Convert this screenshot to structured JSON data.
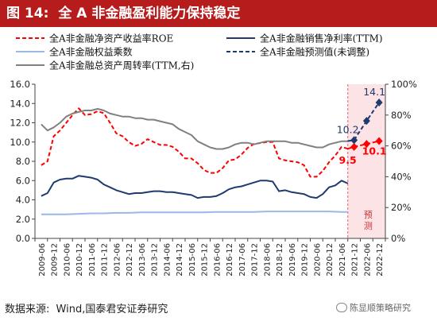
{
  "figure": {
    "number": "图 14:",
    "title": "全 A 非金融盈利能力保持稳定"
  },
  "source": {
    "label": "数据来源:",
    "text": "Wind,国泰君安证券研究"
  },
  "watermark": {
    "text": "陈显顺策略研究"
  },
  "forecast_label": "预测",
  "colors": {
    "title_bg": "#b71c1c",
    "roe": "#ff0000",
    "npm": "#1f3a6e",
    "em": "#9bb8e6",
    "forecast_line": "#1f3a6e",
    "turnover": "#808080",
    "forecast_band": "#fbe3e6"
  },
  "chart_data": {
    "type": "line",
    "categories": [
      "2009-06",
      "2009-12",
      "2010-06",
      "2010-12",
      "2011-06",
      "2011-12",
      "2012-06",
      "2012-12",
      "2013-06",
      "2013-12",
      "2014-06",
      "2014-12",
      "2015-06",
      "2015-12",
      "2016-06",
      "2016-12",
      "2017-06",
      "2017-12",
      "2018-06",
      "2018-12",
      "2019-06",
      "2019-12",
      "2020-06",
      "2020-12",
      "2021-06",
      "2021-12",
      "2022-06",
      "2022-12"
    ],
    "y_left": {
      "min": 0,
      "max": 16,
      "ticks": [
        "0.0",
        "2.0",
        "4.0",
        "6.0",
        "8.0",
        "10.0",
        "12.0",
        "14.0",
        "16.0"
      ]
    },
    "y_right": {
      "min": 0,
      "max": 100,
      "ticks": [
        "0%",
        "20%",
        "40%",
        "60%",
        "80%",
        "100%"
      ]
    },
    "forecast_start": "2021-12",
    "series": [
      {
        "name": "全A非金融净资产收益率ROE",
        "axis": "left",
        "style": "dashed",
        "x": [
          "2009-06",
          "2009-09",
          "2009-12",
          "2010-03",
          "2010-06",
          "2010-09",
          "2010-12",
          "2011-03",
          "2011-06",
          "2011-09",
          "2011-12",
          "2012-03",
          "2012-06",
          "2012-09",
          "2012-12",
          "2013-03",
          "2013-06",
          "2013-09",
          "2013-12",
          "2014-03",
          "2014-06",
          "2014-09",
          "2014-12",
          "2015-03",
          "2015-06",
          "2015-09",
          "2015-12",
          "2016-03",
          "2016-06",
          "2016-09",
          "2016-12",
          "2017-03",
          "2017-06",
          "2017-09",
          "2017-12",
          "2018-03",
          "2018-06",
          "2018-09",
          "2018-12",
          "2019-03",
          "2019-06",
          "2019-09",
          "2019-12",
          "2020-03",
          "2020-06",
          "2020-09",
          "2020-12",
          "2021-03",
          "2021-06",
          "2021-09"
        ],
        "values": [
          7.6,
          8.0,
          10.6,
          11.2,
          12.0,
          12.8,
          13.5,
          12.8,
          12.9,
          13.2,
          13.0,
          12.0,
          10.9,
          10.6,
          10.0,
          9.6,
          9.8,
          10.3,
          10.0,
          9.7,
          9.7,
          9.5,
          9.0,
          8.3,
          8.3,
          7.8,
          7.1,
          6.8,
          6.8,
          7.3,
          8.1,
          8.2,
          8.7,
          9.4,
          9.8,
          9.9,
          10.0,
          10.0,
          8.3,
          8.1,
          8.0,
          7.9,
          7.6,
          6.4,
          6.4,
          7.0,
          7.9,
          8.6,
          9.5,
          9.3
        ]
      },
      {
        "name": "全A非金融销售净利率(TTM)",
        "axis": "left",
        "style": "solid",
        "x": [
          "2009-06",
          "2009-09",
          "2009-12",
          "2010-03",
          "2010-06",
          "2010-09",
          "2010-12",
          "2011-03",
          "2011-06",
          "2011-09",
          "2011-12",
          "2012-03",
          "2012-06",
          "2012-09",
          "2012-12",
          "2013-03",
          "2013-06",
          "2013-09",
          "2013-12",
          "2014-03",
          "2014-06",
          "2014-09",
          "2014-12",
          "2015-03",
          "2015-06",
          "2015-09",
          "2015-12",
          "2016-03",
          "2016-06",
          "2016-09",
          "2016-12",
          "2017-03",
          "2017-06",
          "2017-09",
          "2017-12",
          "2018-03",
          "2018-06",
          "2018-09",
          "2018-12",
          "2019-03",
          "2019-06",
          "2019-09",
          "2019-12",
          "2020-03",
          "2020-06",
          "2020-09",
          "2020-12",
          "2021-03",
          "2021-06",
          "2021-09"
        ],
        "values": [
          4.4,
          4.7,
          5.8,
          6.1,
          6.2,
          6.2,
          6.5,
          6.4,
          6.3,
          6.1,
          5.6,
          5.3,
          5.0,
          4.8,
          4.6,
          4.7,
          4.7,
          4.8,
          4.9,
          4.9,
          4.8,
          4.8,
          4.7,
          4.6,
          4.5,
          4.2,
          4.3,
          4.3,
          4.4,
          4.7,
          5.1,
          5.3,
          5.4,
          5.6,
          5.8,
          6.0,
          6.0,
          5.9,
          4.9,
          5.0,
          4.8,
          4.7,
          4.6,
          4.3,
          4.2,
          4.6,
          5.3,
          5.5,
          6.0,
          5.7
        ]
      },
      {
        "name": "全A非金融权益乘数",
        "axis": "left",
        "style": "solid",
        "x": [
          "2009-06",
          "2009-12",
          "2010-06",
          "2010-12",
          "2011-06",
          "2011-12",
          "2012-06",
          "2012-12",
          "2013-06",
          "2013-12",
          "2014-06",
          "2014-12",
          "2015-06",
          "2015-12",
          "2016-06",
          "2016-12",
          "2017-06",
          "2017-12",
          "2018-06",
          "2018-12",
          "2019-06",
          "2019-12",
          "2020-06",
          "2020-12",
          "2021-06",
          "2021-09"
        ],
        "values": [
          2.5,
          2.5,
          2.5,
          2.55,
          2.6,
          2.6,
          2.65,
          2.65,
          2.7,
          2.7,
          2.7,
          2.7,
          2.7,
          2.7,
          2.75,
          2.75,
          2.75,
          2.75,
          2.8,
          2.8,
          2.8,
          2.8,
          2.8,
          2.8,
          2.75,
          2.75
        ]
      },
      {
        "name": "全A非金融总资产周转率(TTM,右)",
        "axis": "right",
        "style": "solid",
        "x": [
          "2009-06",
          "2009-09",
          "2009-12",
          "2010-03",
          "2010-06",
          "2010-09",
          "2010-12",
          "2011-03",
          "2011-06",
          "2011-09",
          "2011-12",
          "2012-03",
          "2012-06",
          "2012-09",
          "2012-12",
          "2013-03",
          "2013-06",
          "2013-09",
          "2013-12",
          "2014-03",
          "2014-06",
          "2014-09",
          "2014-12",
          "2015-03",
          "2015-06",
          "2015-09",
          "2015-12",
          "2016-03",
          "2016-06",
          "2016-09",
          "2016-12",
          "2017-03",
          "2017-06",
          "2017-09",
          "2017-12",
          "2018-03",
          "2018-06",
          "2018-09",
          "2018-12",
          "2019-03",
          "2019-06",
          "2019-09",
          "2019-12",
          "2020-03",
          "2020-06",
          "2020-09",
          "2020-12",
          "2021-03",
          "2021-06",
          "2021-09"
        ],
        "values": [
          74,
          70,
          72,
          75,
          79,
          81,
          82,
          83,
          83,
          84,
          83,
          81,
          80,
          79,
          79,
          78,
          78,
          77,
          77,
          76,
          75,
          74,
          71,
          69,
          67,
          63,
          61,
          59,
          58,
          58,
          59,
          61,
          62,
          62,
          61,
          62,
          63,
          63,
          63,
          63,
          62,
          62,
          61,
          60,
          59,
          59,
          61,
          62,
          63,
          63
        ]
      },
      {
        "name": "全A非金融预测值(未调整)",
        "axis": "left",
        "style": "dashed",
        "x": [
          "2021-09",
          "2021-12",
          "2022-06",
          "2022-12"
        ],
        "values": [
          9.3,
          9.5,
          9.8,
          10.1
        ]
      },
      {
        "name": "全A非金融预测值(未调整)",
        "axis": "left",
        "style": "dashed",
        "x": [
          "2021-09",
          "2021-12",
          "2022-06",
          "2022-12"
        ],
        "values": [
          10.1,
          10.2,
          12.2,
          14.1
        ]
      }
    ],
    "labels": [
      {
        "text": "10.2",
        "x": "2021-12",
        "y": 10.2,
        "color": "#1f3a6e"
      },
      {
        "text": "14.1",
        "x": "2022-12",
        "y": 14.1,
        "color": "#1f3a6e"
      },
      {
        "text": "9.5",
        "x": "2021-12",
        "y": 9.5,
        "color": "#ff0000"
      },
      {
        "text": "10.1",
        "x": "2022-12",
        "y": 10.1,
        "color": "#ff0000"
      }
    ],
    "legend": [
      {
        "label": "全A非金融净资产收益率ROE",
        "color": "#ff0000",
        "style": "dashed"
      },
      {
        "label": "全A非金融销售净利率(TTM)",
        "color": "#1f3a6e",
        "style": "solid"
      },
      {
        "label": "全A非金融权益乘数",
        "color": "#9bb8e6",
        "style": "solid"
      },
      {
        "label": "全A非金融预测值(未调整)",
        "color": "#1f3a6e",
        "style": "dashed"
      },
      {
        "label": "全A非金融总资产周转率(TTM,右)",
        "color": "#808080",
        "style": "solid"
      }
    ],
    "legend_position": "top",
    "grid": false
  }
}
